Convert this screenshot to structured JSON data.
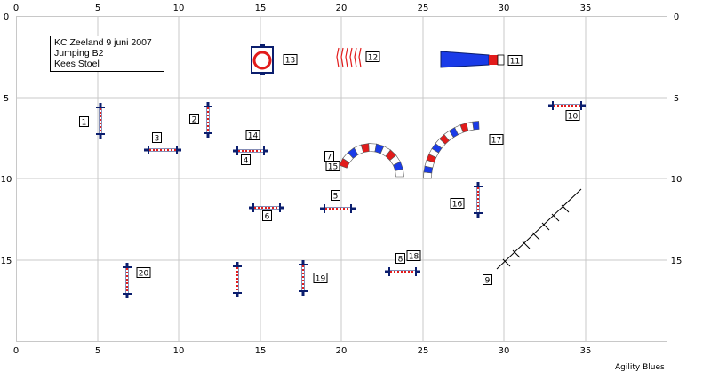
{
  "course_info": {
    "lines": [
      "KC Zeeland 9 juni 2007",
      "Jumping B2",
      "Kees Stoel"
    ]
  },
  "axes": {
    "x_ticks": [
      "0",
      "5",
      "10",
      "15",
      "20",
      "25",
      "30",
      "35"
    ],
    "y_ticks": [
      "0",
      "5",
      "10",
      "15"
    ]
  },
  "obstacles": [
    {
      "label": "1",
      "type": "jump"
    },
    {
      "label": "2",
      "type": "jump"
    },
    {
      "label": "3",
      "type": "jump"
    },
    {
      "label": "4",
      "type": "jump"
    },
    {
      "label": "5",
      "type": "jump"
    },
    {
      "label": "6",
      "type": "jump"
    },
    {
      "label": "7",
      "type": "tunnel"
    },
    {
      "label": "8",
      "type": "jump"
    },
    {
      "label": "9",
      "type": "dog walk"
    },
    {
      "label": "10",
      "type": "jump"
    },
    {
      "label": "11",
      "type": "collapsed tunnel"
    },
    {
      "label": "12",
      "type": "weave poles"
    },
    {
      "label": "13",
      "type": "tyre"
    },
    {
      "label": "14",
      "type": "jump"
    },
    {
      "label": "15",
      "type": "tunnel"
    },
    {
      "label": "16",
      "type": "jump"
    },
    {
      "label": "17",
      "type": "tunnel"
    },
    {
      "label": "18",
      "type": "jump"
    },
    {
      "label": "19",
      "type": "jump"
    },
    {
      "label": "20",
      "type": "jump"
    }
  ],
  "colors": {
    "grid": "#c8c8c8",
    "pole_dark": "#0b1e6e",
    "accent_red": "#e21b1b",
    "accent_blue": "#1a3be8"
  },
  "footer": "Agility Blues"
}
